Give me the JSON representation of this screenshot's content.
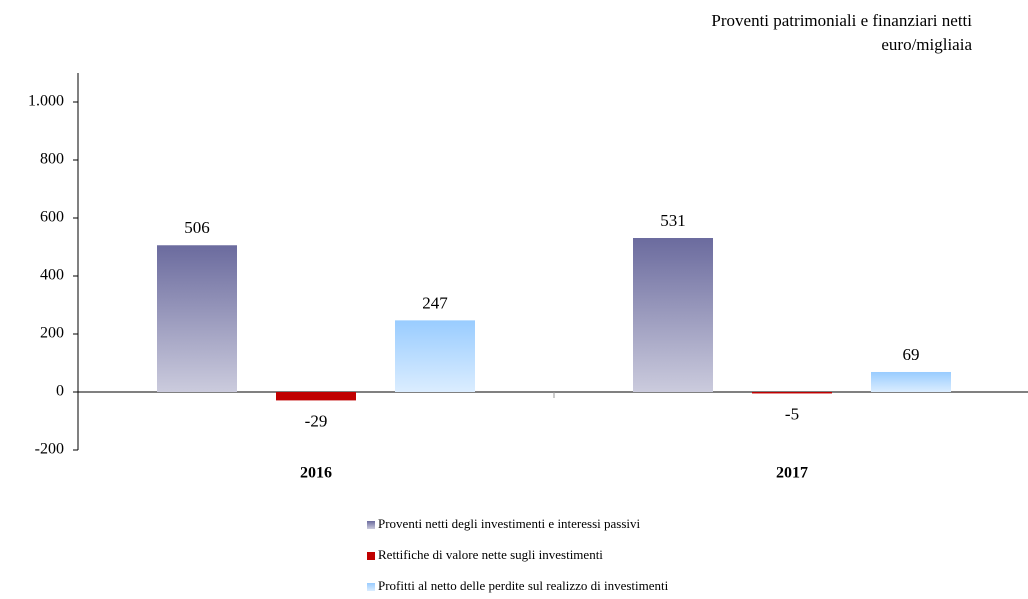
{
  "chart_data": {
    "type": "bar",
    "title": "Proventi patrimoniali e finanziari netti",
    "subtitle": "euro/migliaia",
    "categories": [
      "2016",
      "2017"
    ],
    "series": [
      {
        "name": "Proventi netti degli investimenti e interessi passivi",
        "color": "#6b6b9e",
        "values": [
          506,
          531
        ]
      },
      {
        "name": "Rettifiche di valore nette sugli investimenti",
        "color": "#c00000",
        "values": [
          -29,
          -5
        ]
      },
      {
        "name": "Profitti al netto delle perdite sul realizzo di investimenti",
        "color": "#99ccff",
        "values": [
          247,
          69
        ]
      }
    ],
    "ylim": [
      -200,
      1100
    ],
    "yticks": [
      -200,
      0,
      200,
      400,
      600,
      800,
      {
        "value": 1000,
        "label": "1.000"
      }
    ],
    "grid": false
  }
}
